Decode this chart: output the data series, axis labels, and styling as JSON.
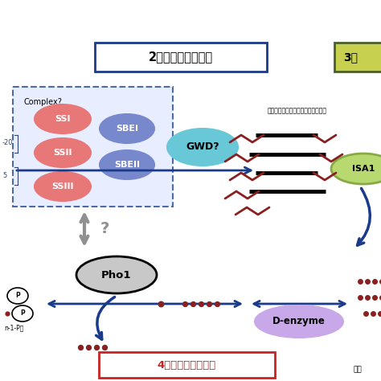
{
  "title2": "2、合成并引入分支",
  "title4": "4、葡萄糖的再利用",
  "complex_label": "Complex?",
  "ssi_label": "SSI",
  "ssii_label": "SSII",
  "ssiii_label": "SSIII",
  "sbei_label": "SBEI",
  "sbeii_label": "SBEII",
  "gwd_label": "GWD?",
  "pho1_label": "Pho1",
  "denzyme_label": "D-enzyme",
  "isa1_label": "ISA1",
  "step3_label": "3、",
  "chinese_annotation": "（含错误分支的支链淠粉分子前体）",
  "label_n1p": "n-1-P）",
  "label_minus20": "-20",
  "label_5": "5",
  "question_mark": "?",
  "bottom_text": "（支",
  "bg_color": "#ffffff",
  "pink_color": "#e87878",
  "blue_color": "#7888cc",
  "light_blue_color": "#68c8d8",
  "gray_color": "#909090",
  "navy_color": "#1a3a8a",
  "green_color": "#88aa44",
  "dark_green_color": "#4a6028",
  "light_green_color": "#b8d870",
  "red_color": "#cc2222",
  "lavender_color": "#c8a8e8",
  "box2_border": "#1a3a8a",
  "dot_color": "#8b2020",
  "pho1_fill": "#c8c8c8",
  "dashed_box_color": "#4a6aaa",
  "dashed_box_fill": "#e8eeff"
}
